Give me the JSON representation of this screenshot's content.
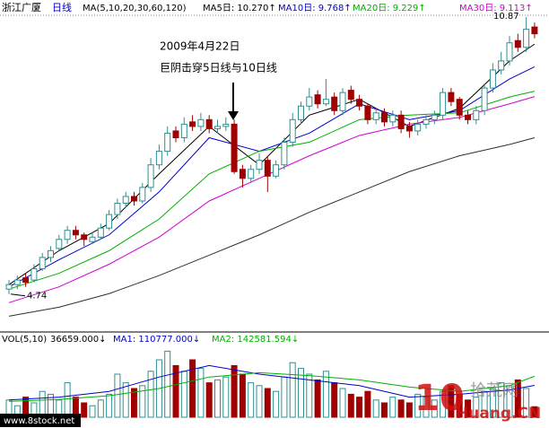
{
  "chart_data": [
    {
      "type": "candlestick",
      "title": "浙江广厦",
      "period": "日线",
      "subtitle": "MA(5,10,20,30,60,120)",
      "annotations": [
        "2009年4月22日",
        "巨阴击穿5日线与10日线"
      ],
      "price_max": 10.87,
      "price_min": 4.74,
      "ylim": [
        4.0,
        10.95
      ],
      "up_color": "#2f8f8f",
      "down_color": "#a00000",
      "open": [
        4.85,
        4.95,
        5.1,
        5.05,
        5.3,
        5.55,
        5.75,
        5.95,
        6.15,
        6.05,
        5.9,
        6.0,
        6.2,
        6.5,
        6.75,
        6.9,
        6.8,
        7.1,
        7.6,
        7.9,
        8.35,
        8.2,
        8.55,
        8.45,
        8.6,
        8.4,
        8.45,
        8.5,
        7.5,
        7.3,
        7.5,
        7.7,
        7.35,
        7.6,
        8.1,
        8.6,
        8.9,
        9.15,
        8.95,
        9.1,
        8.8,
        9.25,
        9.05,
        8.9,
        8.6,
        8.75,
        8.55,
        8.7,
        8.45,
        8.35,
        8.5,
        8.6,
        8.7,
        9.2,
        9.05,
        8.7,
        8.6,
        8.8,
        9.3,
        9.7,
        9.9,
        10.35,
        10.2,
        10.65
      ],
      "high": [
        5.05,
        5.15,
        5.2,
        5.4,
        5.65,
        5.8,
        6.05,
        6.25,
        6.25,
        6.1,
        6.1,
        6.3,
        6.6,
        6.85,
        7.0,
        7.0,
        7.2,
        7.75,
        8.05,
        8.45,
        8.45,
        8.65,
        8.7,
        8.75,
        8.7,
        8.6,
        8.65,
        8.6,
        7.6,
        7.6,
        7.85,
        7.8,
        7.7,
        8.2,
        8.75,
        9.0,
        9.3,
        9.25,
        9.5,
        9.2,
        9.3,
        9.35,
        9.15,
        8.95,
        8.85,
        8.85,
        8.8,
        8.8,
        8.55,
        8.6,
        8.7,
        8.8,
        9.3,
        9.3,
        9.1,
        8.8,
        8.9,
        9.4,
        9.85,
        10.1,
        10.45,
        10.5,
        10.87,
        10.75
      ],
      "low": [
        4.74,
        4.85,
        4.9,
        5.0,
        5.25,
        5.45,
        5.7,
        5.85,
        5.95,
        5.8,
        5.85,
        5.95,
        6.15,
        6.4,
        6.65,
        6.7,
        6.75,
        7.0,
        7.5,
        7.8,
        8.1,
        8.1,
        8.35,
        8.35,
        8.3,
        8.3,
        8.35,
        7.4,
        7.1,
        7.2,
        7.4,
        7.0,
        7.3,
        7.5,
        8.0,
        8.5,
        8.8,
        8.85,
        8.9,
        8.7,
        8.7,
        8.95,
        8.8,
        8.5,
        8.5,
        8.45,
        8.45,
        8.3,
        8.2,
        8.25,
        8.4,
        8.5,
        8.6,
        8.9,
        8.6,
        8.5,
        8.5,
        8.7,
        9.2,
        9.6,
        9.8,
        10.1,
        10.1,
        10.4
      ],
      "close": [
        4.95,
        5.05,
        5.0,
        5.3,
        5.55,
        5.7,
        5.95,
        6.15,
        6.05,
        5.95,
        6.0,
        6.2,
        6.5,
        6.75,
        6.9,
        6.8,
        7.1,
        7.6,
        7.9,
        8.3,
        8.2,
        8.5,
        8.45,
        8.6,
        8.4,
        8.45,
        8.5,
        7.45,
        7.3,
        7.5,
        7.7,
        7.35,
        7.6,
        8.1,
        8.6,
        8.9,
        9.1,
        8.95,
        9.05,
        8.8,
        9.2,
        9.05,
        8.9,
        8.6,
        8.75,
        8.55,
        8.7,
        8.4,
        8.35,
        8.5,
        8.6,
        8.7,
        9.2,
        9.0,
        8.7,
        8.6,
        8.8,
        9.3,
        9.7,
        9.9,
        10.3,
        10.2,
        10.6,
        10.5
      ],
      "series": [
        {
          "name": "MA5日: 10.270↑",
          "color": "#000000",
          "x": [
            0,
            6,
            12,
            18,
            24,
            30,
            36,
            42,
            48,
            54,
            60,
            63
          ],
          "values": [
            4.95,
            5.7,
            6.3,
            7.4,
            8.45,
            7.6,
            8.7,
            9.05,
            8.45,
            8.85,
            9.9,
            10.27
          ]
        },
        {
          "name": "MA10日: 9.768↑",
          "color": "#0000cc",
          "x": [
            0,
            6,
            12,
            18,
            24,
            30,
            36,
            42,
            48,
            54,
            60,
            63
          ],
          "values": [
            4.9,
            5.5,
            6.05,
            7.0,
            8.2,
            7.9,
            8.3,
            8.95,
            8.6,
            8.8,
            9.5,
            9.77
          ]
        },
        {
          "name": "MA20日: 9.229↑",
          "color": "#00b000",
          "x": [
            0,
            6,
            12,
            18,
            24,
            30,
            36,
            42,
            48,
            54,
            60,
            63
          ],
          "values": [
            4.85,
            5.2,
            5.7,
            6.4,
            7.4,
            7.9,
            8.1,
            8.6,
            8.7,
            8.75,
            9.1,
            9.23
          ]
        },
        {
          "name": "MA30日: 9.113↑",
          "color": "#d000d0",
          "x": [
            0,
            6,
            12,
            18,
            24,
            30,
            36,
            42,
            48,
            54,
            60,
            63
          ],
          "values": [
            4.55,
            4.9,
            5.4,
            6.0,
            6.8,
            7.3,
            7.8,
            8.25,
            8.5,
            8.65,
            8.95,
            9.11
          ]
        },
        {
          "color": "#303030",
          "x": [
            0,
            6,
            12,
            18,
            24,
            30,
            36,
            42,
            48,
            54,
            60,
            63
          ],
          "values": [
            4.25,
            4.45,
            4.75,
            5.15,
            5.6,
            6.05,
            6.55,
            7.0,
            7.45,
            7.8,
            8.05,
            8.2
          ]
        }
      ]
    },
    {
      "type": "bar",
      "title": "VOL(5,10)",
      "current_label": "36659.000↓",
      "ylim": [
        0,
        250000
      ],
      "values": [
        60000,
        40000,
        70000,
        50000,
        90000,
        80000,
        60000,
        120000,
        70000,
        50000,
        40000,
        60000,
        80000,
        150000,
        120000,
        100000,
        110000,
        160000,
        200000,
        230000,
        180000,
        160000,
        200000,
        170000,
        120000,
        130000,
        140000,
        180000,
        150000,
        120000,
        110000,
        100000,
        90000,
        140000,
        190000,
        170000,
        150000,
        130000,
        160000,
        120000,
        100000,
        80000,
        70000,
        90000,
        60000,
        50000,
        70000,
        60000,
        50000,
        80000,
        70000,
        60000,
        90000,
        110000,
        80000,
        60000,
        70000,
        90000,
        100000,
        120000,
        110000,
        130000,
        100000,
        36659
      ],
      "series": [
        {
          "name": "MA1: 110777.000↓",
          "color": "#0000cc",
          "x": [
            0,
            6,
            12,
            18,
            24,
            30,
            36,
            42,
            48,
            54,
            60,
            63
          ],
          "values": [
            60000,
            70000,
            90000,
            140000,
            180000,
            150000,
            130000,
            110000,
            70000,
            80000,
            95000,
            110777
          ]
        },
        {
          "name": "MA2: 142581.594↓",
          "color": "#00b000",
          "x": [
            0,
            6,
            12,
            18,
            24,
            30,
            36,
            42,
            48,
            54,
            60,
            63
          ],
          "values": [
            55000,
            62000,
            75000,
            100000,
            140000,
            155000,
            145000,
            130000,
            105000,
            90000,
            110000,
            142581.594
          ]
        }
      ]
    }
  ],
  "watermarks": {
    "site": "www.8stock.net",
    "logo_number": "10",
    "logo_site": "Huang.CN",
    "logo_name": "拾荒网"
  }
}
